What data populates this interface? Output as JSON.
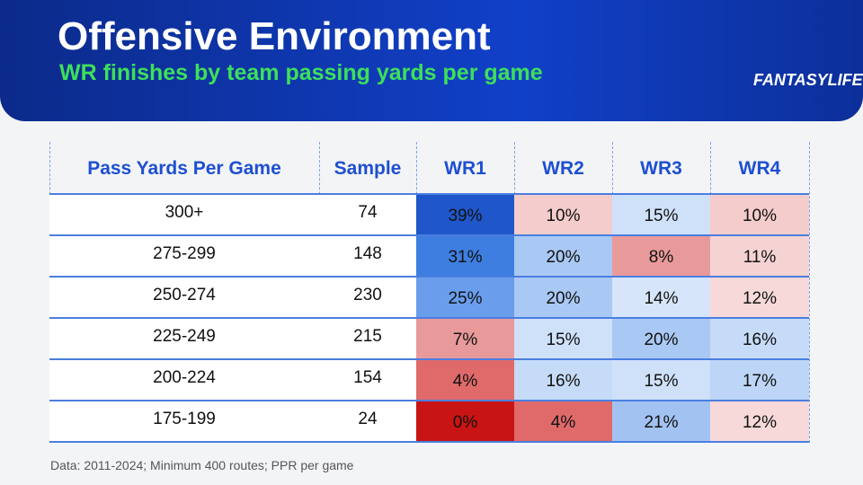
{
  "header": {
    "title": "Offensive Environment",
    "subtitle": "WR finishes by team passing yards per game",
    "logo": "FANTASYLIFE"
  },
  "table": {
    "columns": [
      "Pass Yards Per Game",
      "Sample",
      "WR1",
      "WR2",
      "WR3",
      "WR4"
    ],
    "rows": [
      [
        "300+",
        "74",
        "39%",
        "10%",
        "15%",
        "10%"
      ],
      [
        "275-299",
        "148",
        "31%",
        "20%",
        "8%",
        "11%"
      ],
      [
        "250-274",
        "230",
        "25%",
        "20%",
        "14%",
        "12%"
      ],
      [
        "225-249",
        "215",
        "7%",
        "15%",
        "20%",
        "16%"
      ],
      [
        "200-224",
        "154",
        "4%",
        "16%",
        "15%",
        "17%"
      ],
      [
        "175-199",
        "24",
        "0%",
        "4%",
        "21%",
        "12%"
      ]
    ],
    "cell_colors": [
      [
        "#1f56c9",
        "#f4cccc",
        "#cfe0f9",
        "#f4cccc"
      ],
      [
        "#3d7ee0",
        "#a9c8f3",
        "#e89a9a",
        "#f6d3d3"
      ],
      [
        "#6a9eed",
        "#a9c8f3",
        "#d6e5fa",
        "#f7d9d9"
      ],
      [
        "#e89a9a",
        "#cfe0f9",
        "#a9c8f3",
        "#c6dbf7"
      ],
      [
        "#e06a6a",
        "#c6dbf7",
        "#cfe0f9",
        "#bdd5f6"
      ],
      [
        "#c81414",
        "#e06a6a",
        "#a2c3f2",
        "#f7d9d9"
      ]
    ]
  },
  "footnote": "Data: 2011-2024; Minimum 400 routes; PPR per game"
}
